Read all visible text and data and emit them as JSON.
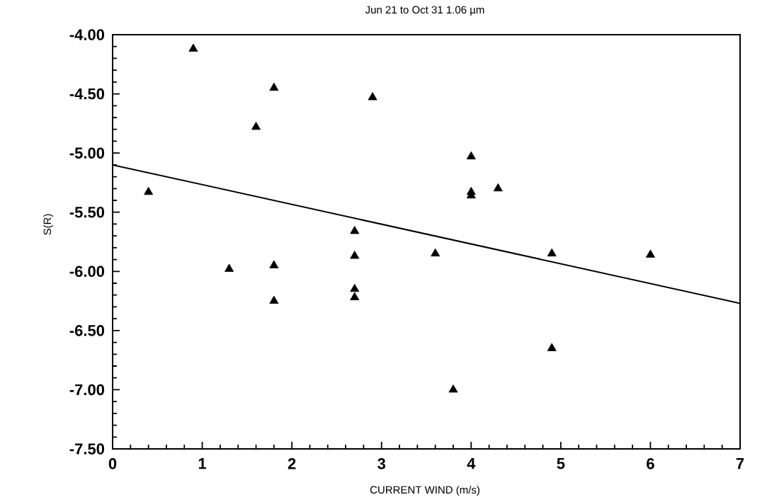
{
  "chart_data": {
    "type": "scatter",
    "title": "Jun 21 to Oct 31     1.06 µm",
    "xlabel": "CURRENT WIND (m/s)",
    "ylabel": "S(R)",
    "xlim": [
      0,
      7
    ],
    "ylim": [
      -7.5,
      -4.0
    ],
    "xticks": [
      0,
      1,
      2,
      3,
      4,
      5,
      6,
      7
    ],
    "yticks": [
      {
        "value": -7.5,
        "label": "-7.50"
      },
      {
        "value": -7.0,
        "label": "-7.00"
      },
      {
        "value": -6.5,
        "label": "-6.50"
      },
      {
        "value": -6.0,
        "label": "-6.00"
      },
      {
        "value": -5.5,
        "label": "-5.50"
      },
      {
        "value": -5.0,
        "label": "-5.00"
      },
      {
        "value": -4.5,
        "label": "-4.50"
      },
      {
        "value": -4.0,
        "label": "-4.00"
      }
    ],
    "marker": "triangle",
    "series": [
      {
        "color": "#000000",
        "x": [
          0.4,
          0.9,
          1.3,
          1.6,
          1.8,
          1.8,
          1.8,
          2.7,
          2.7,
          2.7,
          2.7,
          2.9,
          3.6,
          3.8,
          4.0,
          4.0,
          4.0,
          4.3,
          4.9,
          4.9,
          6.0
        ],
        "values": [
          -5.33,
          -4.12,
          -5.98,
          -4.78,
          -4.45,
          -5.95,
          -6.25,
          -5.66,
          -5.87,
          -6.15,
          -6.22,
          -4.53,
          -5.85,
          -7.0,
          -5.03,
          -5.33,
          -5.36,
          -5.3,
          -5.85,
          -6.65,
          -5.86
        ]
      },
      {
        "type": "line",
        "marker": "none",
        "color": "#000000",
        "x": [
          0,
          7
        ],
        "values": [
          -5.1,
          -6.27
        ]
      }
    ]
  }
}
